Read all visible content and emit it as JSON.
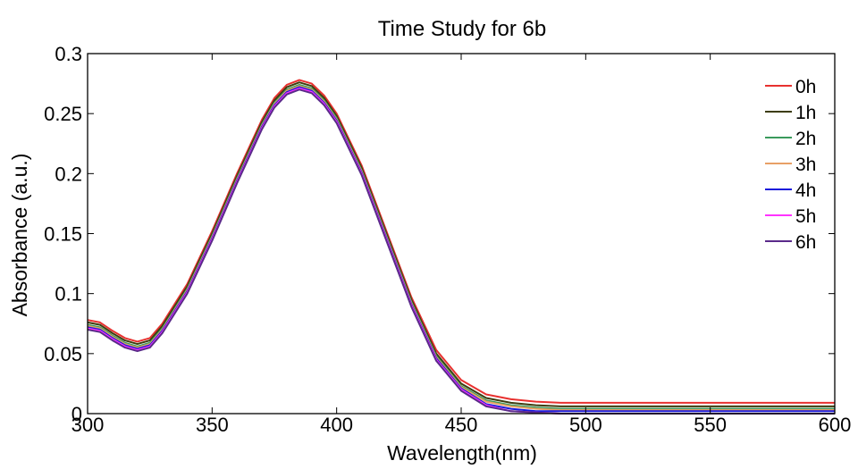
{
  "chart_data": {
    "type": "line",
    "title": "Time Study for 6b",
    "xlabel": "Wavelength(nm)",
    "ylabel": "Absorbance (a.u.)",
    "xlim": [
      300,
      600
    ],
    "ylim": [
      0,
      0.3
    ],
    "x_ticks": [
      "300",
      "350",
      "400",
      "450",
      "500",
      "550",
      "600"
    ],
    "y_ticks": [
      "0",
      "0.05",
      "0.1",
      "0.15",
      "0.2",
      "0.25",
      "0.3"
    ],
    "grid": false,
    "legend_position": "top-right",
    "x": [
      300,
      305,
      310,
      315,
      320,
      325,
      330,
      340,
      350,
      360,
      370,
      375,
      380,
      385,
      390,
      395,
      400,
      410,
      420,
      430,
      440,
      450,
      460,
      470,
      480,
      490,
      500,
      550,
      600
    ],
    "series": [
      {
        "name": "0h",
        "color": "#e8312f",
        "values": [
          0.078,
          0.076,
          0.069,
          0.063,
          0.06,
          0.063,
          0.075,
          0.108,
          0.152,
          0.2,
          0.245,
          0.263,
          0.274,
          0.278,
          0.275,
          0.265,
          0.25,
          0.207,
          0.152,
          0.097,
          0.053,
          0.028,
          0.016,
          0.012,
          0.01,
          0.009,
          0.009,
          0.009,
          0.009
        ]
      },
      {
        "name": "1h",
        "color": "#3d3d0f",
        "values": [
          0.076,
          0.074,
          0.067,
          0.061,
          0.058,
          0.061,
          0.073,
          0.106,
          0.15,
          0.198,
          0.243,
          0.261,
          0.272,
          0.276,
          0.273,
          0.263,
          0.248,
          0.205,
          0.15,
          0.095,
          0.05,
          0.025,
          0.013,
          0.009,
          0.007,
          0.006,
          0.006,
          0.006,
          0.006
        ]
      },
      {
        "name": "2h",
        "color": "#3a9a5c",
        "values": [
          0.074,
          0.072,
          0.065,
          0.059,
          0.056,
          0.059,
          0.071,
          0.104,
          0.148,
          0.196,
          0.241,
          0.259,
          0.27,
          0.274,
          0.271,
          0.261,
          0.246,
          0.203,
          0.148,
          0.093,
          0.048,
          0.023,
          0.011,
          0.007,
          0.005,
          0.004,
          0.004,
          0.004,
          0.004
        ]
      },
      {
        "name": "3h",
        "color": "#e8a066",
        "values": [
          0.073,
          0.071,
          0.064,
          0.058,
          0.055,
          0.058,
          0.07,
          0.103,
          0.147,
          0.195,
          0.24,
          0.258,
          0.269,
          0.273,
          0.27,
          0.26,
          0.245,
          0.202,
          0.147,
          0.092,
          0.047,
          0.022,
          0.01,
          0.006,
          0.004,
          0.003,
          0.003,
          0.003,
          0.003
        ]
      },
      {
        "name": "4h",
        "color": "#1a1adb",
        "values": [
          0.072,
          0.07,
          0.063,
          0.057,
          0.054,
          0.057,
          0.069,
          0.102,
          0.146,
          0.194,
          0.239,
          0.257,
          0.268,
          0.272,
          0.269,
          0.259,
          0.244,
          0.201,
          0.146,
          0.091,
          0.046,
          0.021,
          0.008,
          0.004,
          0.002,
          0.002,
          0.002,
          0.002,
          0.002
        ]
      },
      {
        "name": "5h",
        "color": "#ff33ff",
        "values": [
          0.071,
          0.069,
          0.062,
          0.056,
          0.053,
          0.056,
          0.068,
          0.101,
          0.145,
          0.193,
          0.238,
          0.256,
          0.267,
          0.271,
          0.268,
          0.258,
          0.243,
          0.2,
          0.145,
          0.09,
          0.045,
          0.02,
          0.007,
          0.002,
          0.001,
          0.0,
          0.0,
          0.0,
          0.0
        ]
      },
      {
        "name": "6h",
        "color": "#5a2a8a",
        "values": [
          0.07,
          0.068,
          0.061,
          0.055,
          0.052,
          0.055,
          0.067,
          0.1,
          0.144,
          0.192,
          0.237,
          0.255,
          0.266,
          0.27,
          0.267,
          0.257,
          0.242,
          0.199,
          0.144,
          0.089,
          0.044,
          0.019,
          0.006,
          0.002,
          0.001,
          0.0,
          0.0,
          0.0,
          0.0
        ]
      }
    ]
  }
}
